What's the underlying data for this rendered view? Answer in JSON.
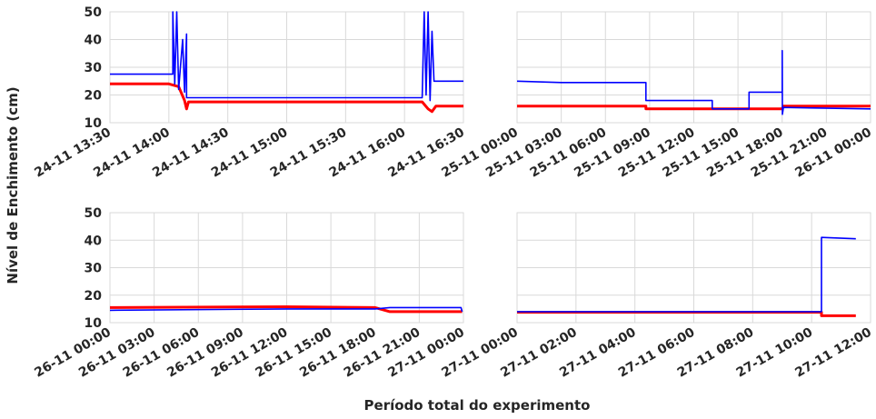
{
  "figure": {
    "ylabel": "Nível de Enchimento (cm)",
    "xlabel": "Período total do experimento"
  },
  "colors": {
    "series_blue": "#0000ff",
    "series_red": "#ff0000",
    "grid": "#d9d9d9",
    "text": "#262626"
  },
  "chart_data": [
    {
      "type": "line",
      "ylim": [
        10,
        50
      ],
      "yticks": [
        10,
        20,
        30,
        40,
        50
      ],
      "xlim": [
        "24-11 13:30",
        "24-11 16:30"
      ],
      "xticks": [
        "24-11 13:30",
        "24-11 14:00",
        "24-11 14:30",
        "24-11 15:00",
        "24-11 15:30",
        "24-11 16:00",
        "24-11 16:30"
      ],
      "grid": true,
      "series": [
        {
          "color": "blue",
          "values": [
            [
              "24-11 13:30",
              27.5
            ],
            [
              "24-11 14:02",
              27.5
            ],
            [
              "24-11 14:02",
              50
            ],
            [
              "24-11 14:03",
              24
            ],
            [
              "24-11 14:04",
              50
            ],
            [
              "24-11 14:05",
              22
            ],
            [
              "24-11 14:07",
              40
            ],
            [
              "24-11 14:08",
              21
            ],
            [
              "24-11 14:09",
              42
            ],
            [
              "24-11 14:09",
              19
            ],
            [
              "24-11 15:40",
              19
            ],
            [
              "24-11 16:09",
              19
            ],
            [
              "24-11 16:10",
              50
            ],
            [
              "24-11 16:11",
              20
            ],
            [
              "24-11 16:12",
              50
            ],
            [
              "24-11 16:13",
              18
            ],
            [
              "24-11 16:14",
              43
            ],
            [
              "24-11 16:15",
              25
            ],
            [
              "24-11 16:30",
              25
            ]
          ]
        },
        {
          "color": "red",
          "values": [
            [
              "24-11 13:30",
              24
            ],
            [
              "24-11 14:00",
              24
            ],
            [
              "24-11 14:05",
              23
            ],
            [
              "24-11 14:08",
              18
            ],
            [
              "24-11 14:09",
              15
            ],
            [
              "24-11 14:10",
              17.5
            ],
            [
              "24-11 16:09",
              17.5
            ],
            [
              "24-11 16:12",
              15
            ],
            [
              "24-11 16:14",
              14
            ],
            [
              "24-11 16:16",
              16
            ],
            [
              "24-11 16:30",
              16
            ]
          ]
        }
      ]
    },
    {
      "type": "line",
      "ylim": [
        10,
        50
      ],
      "yticks": [
        10,
        20,
        30,
        40,
        50
      ],
      "xlim": [
        "25-11 00:00",
        "26-11 00:00"
      ],
      "xticks": [
        "25-11 00:00",
        "25-11 03:00",
        "25-11 06:00",
        "25-11 09:00",
        "25-11 12:00",
        "25-11 15:00",
        "25-11 18:00",
        "25-11 21:00",
        "26-11 00:00"
      ],
      "grid": true,
      "series": [
        {
          "color": "blue",
          "values": [
            [
              "25-11 00:00",
              25
            ],
            [
              "25-11 03:00",
              24.5
            ],
            [
              "25-11 06:00",
              24.5
            ],
            [
              "25-11 08:45",
              24.5
            ],
            [
              "25-11 08:45",
              18
            ],
            [
              "25-11 13:15",
              18
            ],
            [
              "25-11 13:15",
              15
            ],
            [
              "25-11 15:45",
              15
            ],
            [
              "25-11 15:45",
              21
            ],
            [
              "25-11 18:00",
              21
            ],
            [
              "25-11 18:00",
              36
            ],
            [
              "25-11 18:01",
              13
            ],
            [
              "25-11 18:05",
              15.5
            ],
            [
              "26-11 00:00",
              15
            ]
          ]
        },
        {
          "color": "red",
          "values": [
            [
              "25-11 00:00",
              16
            ],
            [
              "25-11 08:45",
              16
            ],
            [
              "25-11 08:45",
              15
            ],
            [
              "25-11 18:00",
              15
            ],
            [
              "25-11 18:05",
              16
            ],
            [
              "26-11 00:00",
              16
            ]
          ]
        }
      ]
    },
    {
      "type": "line",
      "ylim": [
        10,
        50
      ],
      "yticks": [
        10,
        20,
        30,
        40,
        50
      ],
      "xlim": [
        "26-11 00:00",
        "27-11 00:00"
      ],
      "xticks": [
        "26-11 00:00",
        "26-11 03:00",
        "26-11 06:00",
        "26-11 09:00",
        "26-11 12:00",
        "26-11 15:00",
        "26-11 18:00",
        "26-11 21:00",
        "27-11 00:00"
      ],
      "grid": true,
      "series": [
        {
          "color": "blue",
          "values": [
            [
              "26-11 00:00",
              14.5
            ],
            [
              "26-11 12:00",
              15
            ],
            [
              "26-11 18:00",
              15
            ],
            [
              "26-11 19:00",
              15.5
            ],
            [
              "26-11 23:50",
              15.5
            ],
            [
              "26-11 23:55",
              14
            ]
          ]
        },
        {
          "color": "red",
          "values": [
            [
              "26-11 00:00",
              15.5
            ],
            [
              "26-11 12:00",
              15.8
            ],
            [
              "26-11 18:00",
              15.5
            ],
            [
              "26-11 19:00",
              14
            ],
            [
              "26-11 23:55",
              14
            ]
          ]
        }
      ]
    },
    {
      "type": "line",
      "ylim": [
        10,
        50
      ],
      "yticks": [
        10,
        20,
        30,
        40,
        50
      ],
      "xlim": [
        "27-11 00:00",
        "27-11 12:00"
      ],
      "xticks": [
        "27-11 00:00",
        "27-11 02:00",
        "27-11 04:00",
        "27-11 06:00",
        "27-11 08:00",
        "27-11 10:00",
        "27-11 12:00"
      ],
      "grid": true,
      "series": [
        {
          "color": "blue",
          "values": [
            [
              "27-11 00:00",
              14
            ],
            [
              "27-11 10:20",
              14
            ],
            [
              "27-11 10:20",
              41
            ],
            [
              "27-11 11:30",
              40.5
            ]
          ]
        },
        {
          "color": "red",
          "values": [
            [
              "27-11 00:00",
              13.8
            ],
            [
              "27-11 10:20",
              13.8
            ],
            [
              "27-11 10:20",
              12.5
            ],
            [
              "27-11 11:30",
              12.5
            ]
          ]
        }
      ]
    }
  ]
}
